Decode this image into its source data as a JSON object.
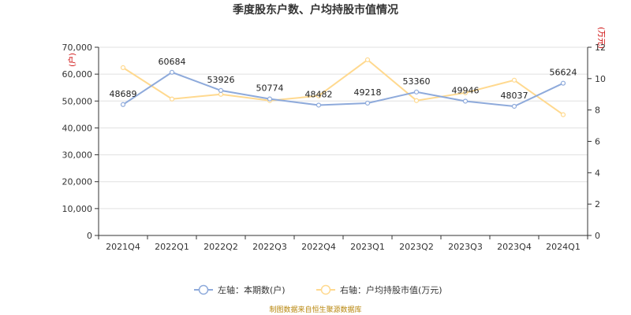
{
  "chart_data": {
    "type": "line",
    "title": "季度股东户数、户均持股市值情况",
    "categories": [
      "2021Q4",
      "2022Q1",
      "2022Q2",
      "2022Q3",
      "2022Q4",
      "2023Q1",
      "2023Q2",
      "2023Q3",
      "2023Q4",
      "2024Q1"
    ],
    "left_axis": {
      "unit_label": "(户)",
      "ylim": [
        0,
        70000
      ],
      "ticks": [
        "0",
        "10,000",
        "20,000",
        "30,000",
        "40,000",
        "50,000",
        "60,000",
        "70,000"
      ]
    },
    "right_axis": {
      "unit_label": "(万元)",
      "ylim": [
        0,
        12
      ],
      "ticks": [
        "0",
        "2",
        "4",
        "6",
        "8",
        "10",
        "12"
      ]
    },
    "series": [
      {
        "name": "左轴：本期数(户)",
        "axis": "left",
        "color": "#8eaadb",
        "values": [
          48689,
          60684,
          53926,
          50774,
          48482,
          49218,
          53360,
          49946,
          48037,
          56624
        ],
        "labels": [
          "48689",
          "60684",
          "53926",
          "50774",
          "48482",
          "49218",
          "53360",
          "49946",
          "48037",
          "56624"
        ]
      },
      {
        "name": "右轴：户均持股市值(万元)",
        "axis": "right",
        "color": "#ffd98f",
        "values": [
          10.7,
          8.7,
          9.0,
          8.6,
          8.9,
          11.2,
          8.6,
          9.1,
          9.9,
          7.7
        ]
      }
    ],
    "grid": true,
    "legend_position": "bottom",
    "source": "制图数据来自恒生聚源数据库"
  }
}
